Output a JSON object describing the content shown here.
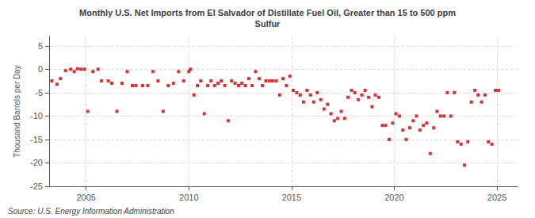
{
  "chart_data": {
    "type": "scatter",
    "title": "Monthly U.S. Net Imports from El Salvador of Distillate Fuel Oil, Greater than 15 to 500 ppm\nSulfur",
    "ylabel": "Thousand Barrels per Day",
    "annotations": [
      "Source: U.S. Energy Information Administration"
    ],
    "color": "#cc0000",
    "marker": "square",
    "grid": true,
    "xlim": [
      2003.2,
      2026.0
    ],
    "xticks": [
      2005,
      2010,
      2015,
      2020,
      2025
    ],
    "ylim": [
      -25,
      7
    ],
    "yticks": [
      5,
      0,
      -5,
      -10,
      -15,
      -20,
      -25
    ],
    "x": [
      2003.33,
      2003.58,
      2003.75,
      2004.0,
      2004.25,
      2004.42,
      2004.58,
      2004.75,
      2004.92,
      2005.08,
      2005.33,
      2005.58,
      2005.75,
      2006.08,
      2006.25,
      2006.5,
      2006.75,
      2007.0,
      2007.25,
      2007.42,
      2007.75,
      2008.0,
      2008.25,
      2008.5,
      2008.75,
      2009.0,
      2009.25,
      2009.5,
      2009.75,
      2010.0,
      2010.08,
      2010.25,
      2010.42,
      2010.58,
      2010.75,
      2010.92,
      2011.08,
      2011.25,
      2011.42,
      2011.58,
      2011.75,
      2011.92,
      2012.08,
      2012.25,
      2012.42,
      2012.58,
      2012.75,
      2012.92,
      2013.08,
      2013.25,
      2013.42,
      2013.58,
      2013.75,
      2013.92,
      2014.08,
      2014.25,
      2014.42,
      2014.58,
      2014.75,
      2014.92,
      2015.08,
      2015.25,
      2015.42,
      2015.58,
      2015.75,
      2015.92,
      2016.08,
      2016.25,
      2016.42,
      2016.58,
      2016.75,
      2016.92,
      2017.08,
      2017.25,
      2017.42,
      2017.58,
      2017.75,
      2017.92,
      2018.08,
      2018.25,
      2018.42,
      2018.58,
      2018.75,
      2018.92,
      2019.08,
      2019.25,
      2019.42,
      2019.58,
      2019.75,
      2019.92,
      2020.08,
      2020.25,
      2020.42,
      2020.58,
      2020.75,
      2020.92,
      2021.08,
      2021.25,
      2021.42,
      2021.58,
      2021.75,
      2021.92,
      2022.08,
      2022.25,
      2022.42,
      2022.58,
      2022.75,
      2022.92,
      2023.08,
      2023.25,
      2023.42,
      2023.58,
      2023.75,
      2023.92,
      2024.08,
      2024.25,
      2024.42,
      2024.58,
      2024.75,
      2024.92,
      2025.08
    ],
    "values": [
      -2.5,
      -3.2,
      -2.0,
      -0.3,
      0.0,
      -0.5,
      0.1,
      0.0,
      0.0,
      -9.0,
      -0.5,
      0.0,
      -2.5,
      -2.5,
      -3.0,
      -9.0,
      -3.0,
      -0.5,
      -3.5,
      -3.5,
      -3.5,
      -3.5,
      -0.5,
      -2.5,
      -9.0,
      -3.5,
      -3.0,
      -0.5,
      -2.5,
      -0.5,
      0.0,
      -5.5,
      -3.5,
      -2.5,
      -9.5,
      -3.5,
      -2.5,
      -3.5,
      -3.0,
      -2.5,
      -3.5,
      -11.0,
      -2.5,
      -3.0,
      -3.5,
      -3.0,
      -3.5,
      -2.0,
      -3.5,
      -0.5,
      -2.0,
      -3.5,
      -2.5,
      -2.5,
      -2.5,
      -2.5,
      -5.5,
      -2.0,
      -3.5,
      -1.5,
      -4.5,
      -5.0,
      -5.5,
      -7.0,
      -4.5,
      -5.5,
      -7.0,
      -5.0,
      -6.5,
      -8.5,
      -7.5,
      -9.5,
      -11.0,
      -10.5,
      -9.0,
      -10.5,
      -6.0,
      -4.5,
      -5.0,
      -6.5,
      -5.5,
      -4.5,
      -6.0,
      -8.0,
      -5.5,
      -6.0,
      -12.0,
      -12.0,
      -15.0,
      -11.5,
      -9.5,
      -10.0,
      -13.0,
      -15.0,
      -12.5,
      -11.0,
      -10.0,
      -13.0,
      -12.0,
      -11.5,
      -18.0,
      -12.5,
      -9.0,
      -10.0,
      -10.0,
      -5.0,
      -10.0,
      -5.0,
      -15.5,
      -16.0,
      -20.5,
      -15.5,
      -7.0,
      -4.5,
      -5.5,
      -7.0,
      -5.5,
      -15.5,
      -16.0,
      -4.5,
      -4.5
    ]
  }
}
